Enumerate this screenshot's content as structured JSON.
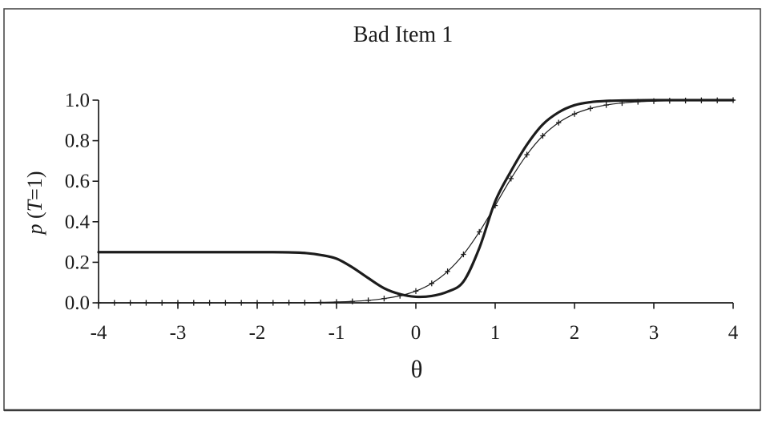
{
  "figure": {
    "frame_color": "#4a4a4a",
    "background": "#ffffff",
    "line_color": "#1c1c1c",
    "y_axis_label_parts": {
      "p": "p",
      "open": " (",
      "T": "T",
      "close": "=1)"
    }
  },
  "chart_data": {
    "type": "line",
    "title": "Bad Item 1",
    "xlabel": "θ",
    "ylabel": "p (T=1)",
    "xlim": [
      -4,
      4
    ],
    "ylim": [
      0,
      1
    ],
    "grid": false,
    "legend": "none",
    "x_ticks": [
      "-4",
      "-3",
      "-2",
      "-1",
      "0",
      "1",
      "2",
      "3",
      "4"
    ],
    "x_tick_values": [
      -4,
      -3,
      -2,
      -1,
      0,
      1,
      2,
      3,
      4
    ],
    "y_ticks": [
      "0.0",
      "0.2",
      "0.4",
      "0.6",
      "0.8",
      "1.0"
    ],
    "y_tick_values": [
      0.0,
      0.2,
      0.4,
      0.6,
      0.8,
      1.0
    ],
    "x": [
      -4.0,
      -3.8,
      -3.6,
      -3.4,
      -3.2,
      -3.0,
      -2.8,
      -2.6,
      -2.4,
      -2.2,
      -2.0,
      -1.8,
      -1.6,
      -1.4,
      -1.2,
      -1.0,
      -0.8,
      -0.6,
      -0.4,
      -0.2,
      0.0,
      0.2,
      0.4,
      0.6,
      0.8,
      1.0,
      1.2,
      1.4,
      1.6,
      1.8,
      2.0,
      2.2,
      2.4,
      2.6,
      2.8,
      3.0,
      3.2,
      3.4,
      3.6,
      3.8,
      4.0
    ],
    "series": [
      {
        "name": "true-nonmonotone-icc",
        "style": "thick",
        "marker": "none",
        "stroke_width": 3.2,
        "values": [
          0.25,
          0.25,
          0.25,
          0.25,
          0.25,
          0.25,
          0.25,
          0.25,
          0.25,
          0.25,
          0.25,
          0.25,
          0.249,
          0.246,
          0.236,
          0.218,
          0.175,
          0.122,
          0.072,
          0.043,
          0.03,
          0.034,
          0.055,
          0.105,
          0.27,
          0.5,
          0.65,
          0.78,
          0.88,
          0.94,
          0.975,
          0.99,
          0.996,
          0.998,
          0.999,
          1.0,
          1.0,
          1.0,
          1.0,
          1.0,
          1.0
        ]
      },
      {
        "name": "estimated-logistic-icc",
        "style": "thin",
        "marker": "plus",
        "stroke_width": 1.2,
        "values": [
          0.0,
          0.0,
          0.0,
          0.0,
          0.0,
          0.0,
          0.0,
          0.0,
          0.0,
          0.0,
          0.0,
          0.0,
          0.001,
          0.001,
          0.002,
          0.004,
          0.007,
          0.012,
          0.021,
          0.035,
          0.058,
          0.096,
          0.155,
          0.239,
          0.35,
          0.48,
          0.613,
          0.731,
          0.824,
          0.889,
          0.932,
          0.959,
          0.976,
          0.986,
          0.992,
          0.995,
          0.997,
          0.998,
          0.999,
          0.999,
          1.0
        ]
      }
    ]
  }
}
